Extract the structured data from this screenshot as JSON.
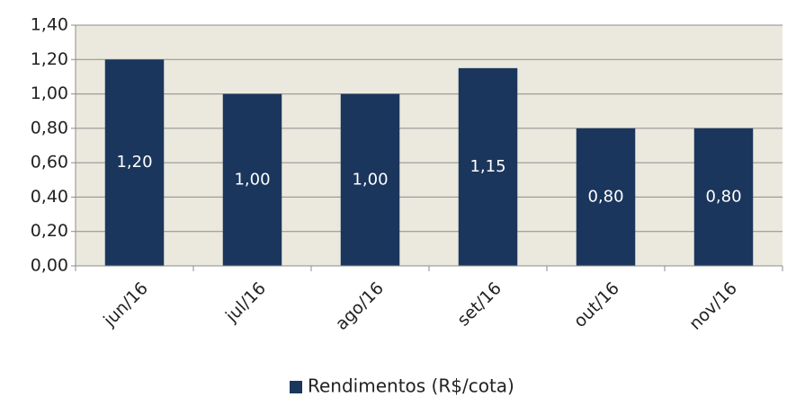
{
  "chart_data": {
    "type": "bar",
    "categories": [
      "jun/16",
      "jul/16",
      "ago/16",
      "set/16",
      "out/16",
      "nov/16"
    ],
    "series": [
      {
        "name": "Rendimentos (R$/cota)",
        "color": "#1b365d",
        "values": [
          1.2,
          1.0,
          1.0,
          1.15,
          0.8,
          0.8
        ],
        "value_labels": [
          "1,20",
          "1,00",
          "1,00",
          "1,15",
          "0,80",
          "0,80"
        ]
      }
    ],
    "ylim": [
      0,
      1.4
    ],
    "yticks": [
      {
        "value": 0,
        "label": "0,00"
      },
      {
        "value": 0.2,
        "label": "0,20"
      },
      {
        "value": 0.4,
        "label": "0,40"
      },
      {
        "value": 0.6,
        "label": "0,60"
      },
      {
        "value": 0.8,
        "label": "0,80"
      },
      {
        "value": 1.0,
        "label": "1,00"
      },
      {
        "value": 1.2,
        "label": "1,20"
      },
      {
        "value": 1.4,
        "label": "1,40"
      }
    ],
    "grid": true,
    "legend": "bottom"
  }
}
